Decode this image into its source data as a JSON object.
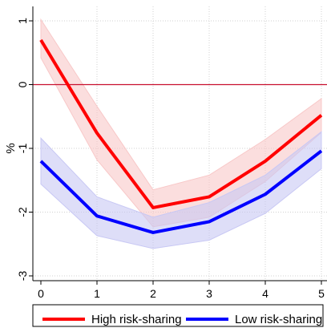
{
  "chart_data": {
    "type": "line",
    "title": "",
    "xlabel": "",
    "ylabel": "%",
    "x": [
      0,
      1,
      2,
      3,
      4,
      5
    ],
    "xlim": [
      0,
      5
    ],
    "ylim": [
      -3,
      1
    ],
    "xticks": [
      "0",
      "1",
      "2",
      "3",
      "4",
      "5"
    ],
    "yticks": [
      "-3",
      "-2",
      "-1",
      "0",
      "1"
    ],
    "grid": true,
    "zero_line": 0,
    "legend_position": "bottom",
    "series": [
      {
        "name": "High risk-sharing",
        "color": "#ff0000",
        "band_color": "#f8c8c8",
        "values": [
          0.7,
          -0.76,
          -1.93,
          -1.76,
          -1.2,
          -0.48
        ],
        "lower": [
          0.42,
          -1.18,
          -2.23,
          -2.08,
          -1.52,
          -0.75
        ],
        "upper": [
          1.02,
          -0.34,
          -1.65,
          -1.42,
          -0.86,
          -0.22
        ]
      },
      {
        "name": "Low risk-sharing",
        "color": "#0000ff",
        "band_color": "#c8c8f4",
        "values": [
          -1.2,
          -2.06,
          -2.32,
          -2.15,
          -1.72,
          -1.04
        ],
        "lower": [
          -1.56,
          -2.37,
          -2.57,
          -2.44,
          -2.02,
          -1.32
        ],
        "upper": [
          -0.84,
          -1.76,
          -2.08,
          -1.85,
          -1.42,
          -0.74
        ]
      }
    ]
  }
}
